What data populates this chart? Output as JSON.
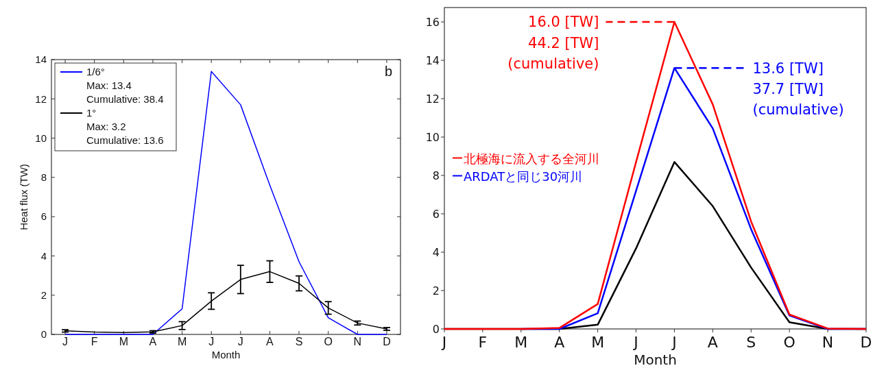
{
  "chart_data": [
    {
      "type": "line",
      "xlabel": "Month",
      "ylabel": "Heat flux (TW)",
      "categories": [
        "J",
        "F",
        "M",
        "A",
        "M",
        "J",
        "J",
        "A",
        "S",
        "O",
        "N",
        "D"
      ],
      "ylim": [
        0,
        14
      ],
      "yticks": [
        0,
        2,
        4,
        6,
        8,
        10,
        12,
        14
      ],
      "legend": "top left",
      "series": [
        {
          "name": "1/6°",
          "color": "#0000ff",
          "values": [
            0,
            0,
            0,
            0,
            1.3,
            13.4,
            11.7,
            7.6,
            3.7,
            0.85,
            0,
            0
          ]
        },
        {
          "name": "1°",
          "color": "#000000",
          "values": [
            0.18,
            0.12,
            0.1,
            0.13,
            0.45,
            1.7,
            2.8,
            3.2,
            2.6,
            1.35,
            0.58,
            0.28
          ],
          "errors": [
            0.06,
            null,
            null,
            0.06,
            0.2,
            0.42,
            0.72,
            0.55,
            0.38,
            0.32,
            0.1,
            0.07
          ]
        }
      ],
      "annotations": [
        "b",
        "Max: 13.4",
        "Cumulative: 38.4",
        "Max: 3.2",
        "Cumulative: 13.6"
      ]
    },
    {
      "type": "line",
      "xlabel": "Month",
      "categories": [
        "J",
        "F",
        "M",
        "A",
        "M",
        "J",
        "J",
        "A",
        "S",
        "O",
        "N",
        "D"
      ],
      "ylim": [
        0,
        16.75
      ],
      "yticks": [
        0,
        2,
        4,
        6,
        8,
        10,
        12,
        14,
        16
      ],
      "legend": "left",
      "series": [
        {
          "name": "北極海に流入する全河川",
          "color": "#ff0000",
          "values": [
            0,
            0,
            0,
            0.05,
            1.3,
            8.7,
            16.0,
            11.7,
            5.6,
            0.75,
            0.02,
            0
          ]
        },
        {
          "name": "ARDATと同じ30河川",
          "color": "#0000ff",
          "values": [
            null,
            null,
            0,
            0,
            0.82,
            7.2,
            13.6,
            10.45,
            5.2,
            0.7,
            0,
            0
          ]
        },
        {
          "color": "#000000",
          "values": [
            0,
            0,
            0,
            0,
            0.22,
            4.2,
            8.7,
            6.4,
            3.2,
            0.35,
            0,
            0
          ]
        }
      ],
      "annotations": [
        "16.0 [TW]",
        "44.2 [TW]",
        "(cumulative)",
        "13.6 [TW]",
        "37.7 [TW]",
        "(cumulative)"
      ]
    }
  ]
}
